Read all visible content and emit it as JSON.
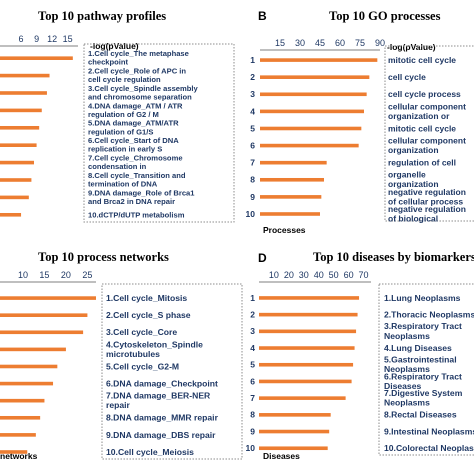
{
  "colors": {
    "bar": "#ed7d31",
    "text": "#1f3864"
  },
  "panels": [
    {
      "letter": "",
      "title": "Top 10 pathway profiles"
    },
    {
      "letter": "B",
      "title": "Top 10 GO processes"
    },
    {
      "letter": "",
      "title": "Top 10 process networks"
    },
    {
      "letter": "D",
      "title": "Top 10 diseases by biomarkers"
    }
  ],
  "chart_data": [
    {
      "type": "bar",
      "orientation": "horizontal",
      "title": "Top 10 pathway profiles",
      "xlabel": "-log(pValue)",
      "ylabel": "",
      "xticks": [
        6,
        9,
        12,
        15
      ],
      "xlim": [
        0,
        17
      ],
      "categories": [
        "1",
        "2",
        "3",
        "4",
        "5",
        "6",
        "7",
        "8",
        "9",
        "10"
      ],
      "labels": [
        "Cell cycle_The metaphase checkpoint",
        "Cell cycle_Role of APC in cell cycle regulation",
        "Cell cycle_Spindle assembly and chromosome separation",
        "DNA damage_ATM / ATR regulation of G2 / M checkpoint",
        "DNA damage_ATM/ATR regulation of G1/S checkpoint",
        "Cell cycle_Start of DNA replication in early S phase",
        "Cell cycle_Chromosome condensation in prometaphase",
        "Cell cycle_Transition and termination of DNA replication",
        "DNA damage_Role of Brca1 and Brca2 in DNA repair",
        "dCTP/dUTP metabolism"
      ],
      "values": [
        16,
        11.5,
        11,
        10,
        9.5,
        9,
        8.5,
        8,
        7.5,
        6
      ]
    },
    {
      "type": "bar",
      "orientation": "horizontal",
      "title": "Top 10 GO processes",
      "xlabel": "-log(pValue)",
      "ylabel": "Processes",
      "xticks": [
        15,
        30,
        45,
        60,
        75,
        90
      ],
      "xlim": [
        0,
        90
      ],
      "categories": [
        "1",
        "2",
        "3",
        "4",
        "5",
        "6",
        "7",
        "8",
        "9",
        "10"
      ],
      "labels": [
        "mitotic cell cycle",
        "cell cycle",
        "cell cycle process",
        "cellular component organization or biogenesis",
        "mitotic cell cycle",
        "cellular component organization",
        "regulation of cell",
        "organelle organization",
        "negative regulation of cellular process",
        "negative regulation of biological process"
      ],
      "values": [
        88,
        82,
        80,
        78,
        76,
        74,
        50,
        48,
        46,
        45
      ]
    },
    {
      "type": "bar",
      "orientation": "horizontal",
      "title": "Top 10 process networks",
      "xlabel": "",
      "ylabel": "networks",
      "xticks": [
        10,
        15,
        20,
        25
      ],
      "xlim": [
        0,
        27
      ],
      "categories": [
        "1",
        "2",
        "3",
        "4",
        "5",
        "6",
        "7",
        "8",
        "9",
        "10"
      ],
      "labels": [
        "1.Cell cycle_Mitosis",
        "2.Cell cycle_S phase",
        "3.Cell cycle_Core",
        "4.Cytoskeleton_Spindle microtubules",
        "5.Cell cycle_G2-M",
        "6.DNA damage_Checkpoint",
        "7.DNA damage_BER-NER repair",
        "8.DNA damage_MMR repair",
        "9.DNA damage_DBS repair",
        "10.Cell cycle_Meiosis"
      ],
      "values": [
        27,
        25,
        24,
        20,
        18,
        17,
        15,
        14,
        13,
        11
      ]
    },
    {
      "type": "bar",
      "orientation": "horizontal",
      "title": "Top 10 diseases by biomarkers",
      "xlabel": "",
      "ylabel": "Diseases",
      "xticks": [
        10,
        20,
        30,
        40,
        50,
        60,
        70
      ],
      "xlim": [
        0,
        75
      ],
      "categories": [
        "1",
        "2",
        "3",
        "4",
        "5",
        "6",
        "7",
        "8",
        "9",
        "10"
      ],
      "labels": [
        "1.Lung Neoplasms",
        "2.Thoracic Neoplasms",
        "3.Respiratory Tract Neoplasms",
        "4.Lung Diseases",
        "5.Gastrointestinal Neoplasms",
        "6.Respiratory Tract Diseases",
        "7.Digestive System Neoplasms",
        "8.Rectal Diseases",
        "9.Intestinal Neoplasms",
        "10.Colorectal Neoplasms"
      ],
      "values": [
        67,
        66,
        65,
        64,
        63,
        62,
        58,
        48,
        47,
        46
      ]
    }
  ]
}
